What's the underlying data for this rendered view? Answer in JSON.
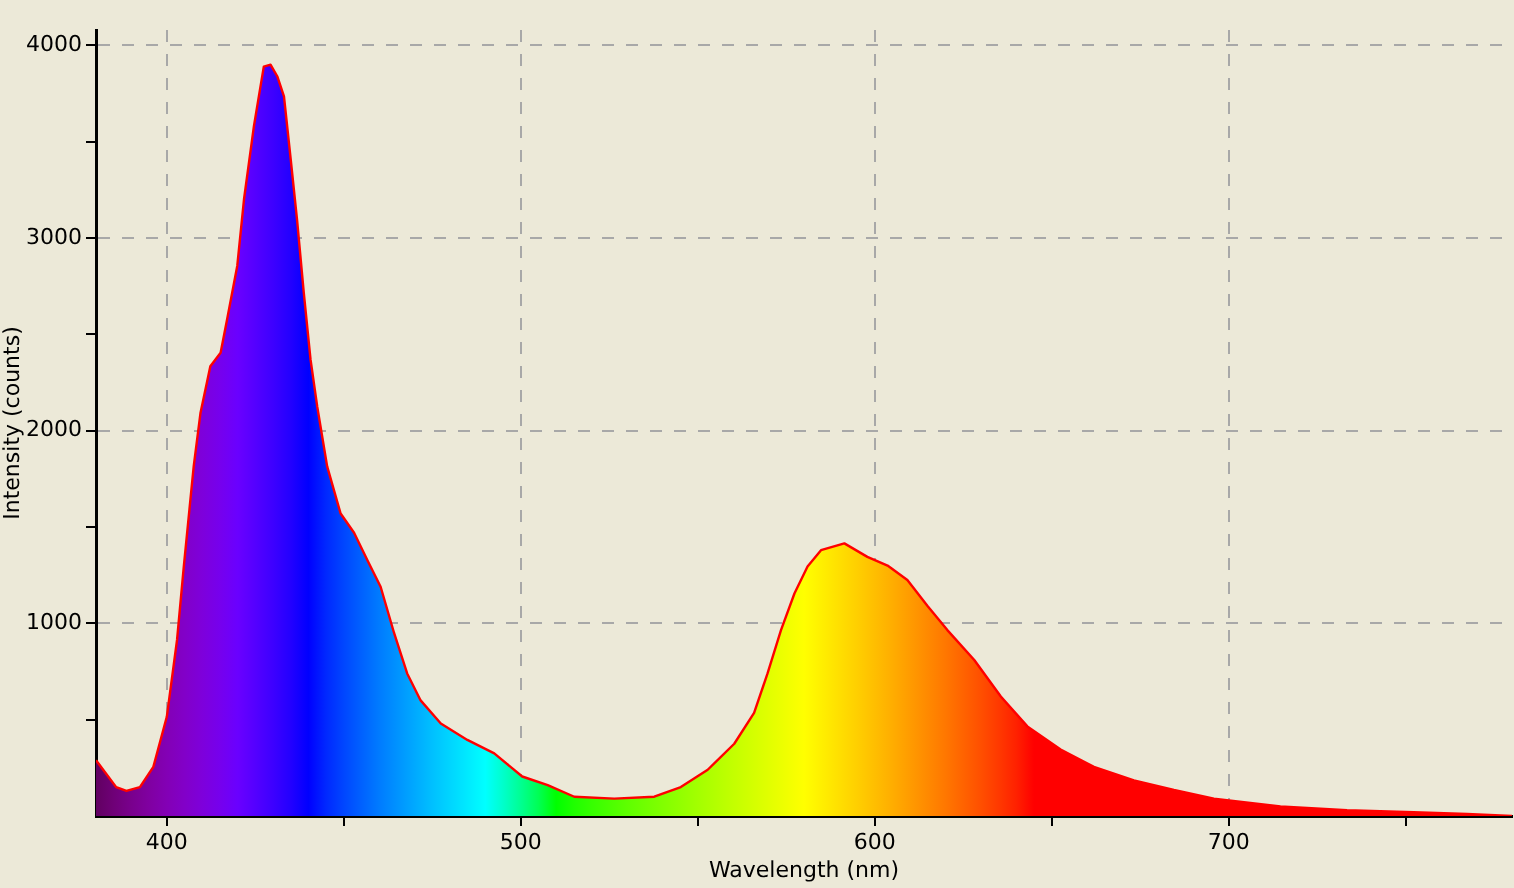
{
  "chart_data": {
    "type": "area",
    "xlabel": "Wavelength (nm)",
    "ylabel": "Intensity (counts)",
    "xlim": [
      380,
      780
    ],
    "ylim": [
      0,
      4080
    ],
    "xticks": [
      400,
      {
        "value": 450,
        "label": null
      },
      500,
      {
        "value": 550,
        "label": null
      },
      600,
      {
        "value": 650,
        "label": null
      },
      700,
      {
        "value": 750,
        "label": null
      }
    ],
    "yticks": [
      {
        "value": 500,
        "label": null
      },
      1000,
      {
        "value": 1500,
        "label": null
      },
      2000,
      {
        "value": 2500,
        "label": null
      },
      3000,
      {
        "value": 3500,
        "label": null
      },
      4000
    ],
    "grid": true,
    "legend": false,
    "line_style": "solid",
    "marker": "none",
    "series": [
      {
        "color": "#ff0000",
        "x": [
          380,
          385.7,
          388.6,
          392.4,
          396.2,
          400,
          402.9,
          404.8,
          407.6,
          409.5,
          412.3,
          415.2,
          417,
          419.9,
          421.8,
          424.6,
          427.4,
          429.3,
          431.2,
          433.1,
          435,
          436.8,
          438.7,
          440.6,
          442.5,
          445.3,
          449.1,
          452.9,
          456.6,
          460.4,
          464.2,
          467.9,
          471.7,
          477.4,
          484.9,
          492.5,
          500.4,
          507.6,
          515.1,
          526.4,
          537.7,
          545.2,
          552.8,
          560.3,
          565.9,
          569.7,
          573.5,
          577.3,
          581,
          584.8,
          591.4,
          597.9,
          603.6,
          609.2,
          614.9,
          620.5,
          628.1,
          635.6,
          643.1,
          652.5,
          661.9,
          673.2,
          684.5,
          695.8,
          714.6,
          733.4,
          752.2,
          767.3,
          780
        ],
        "values": [
          290,
          150,
          130,
          150,
          255,
          515,
          915,
          1295,
          1815,
          2090,
          2335,
          2405,
          2575,
          2855,
          3200,
          3580,
          3890,
          3900,
          3840,
          3735,
          3410,
          3095,
          2715,
          2370,
          2125,
          1815,
          1570,
          1470,
          1330,
          1190,
          950,
          740,
          600,
          480,
          395,
          325,
          205,
          160,
          100,
          90,
          100,
          150,
          240,
          375,
          535,
          740,
          965,
          1155,
          1295,
          1380,
          1415,
          1345,
          1300,
          1225,
          1090,
          965,
          810,
          620,
          465,
          345,
          255,
          185,
          135,
          90,
          50,
          30,
          20,
          10,
          0
        ]
      }
    ]
  }
}
